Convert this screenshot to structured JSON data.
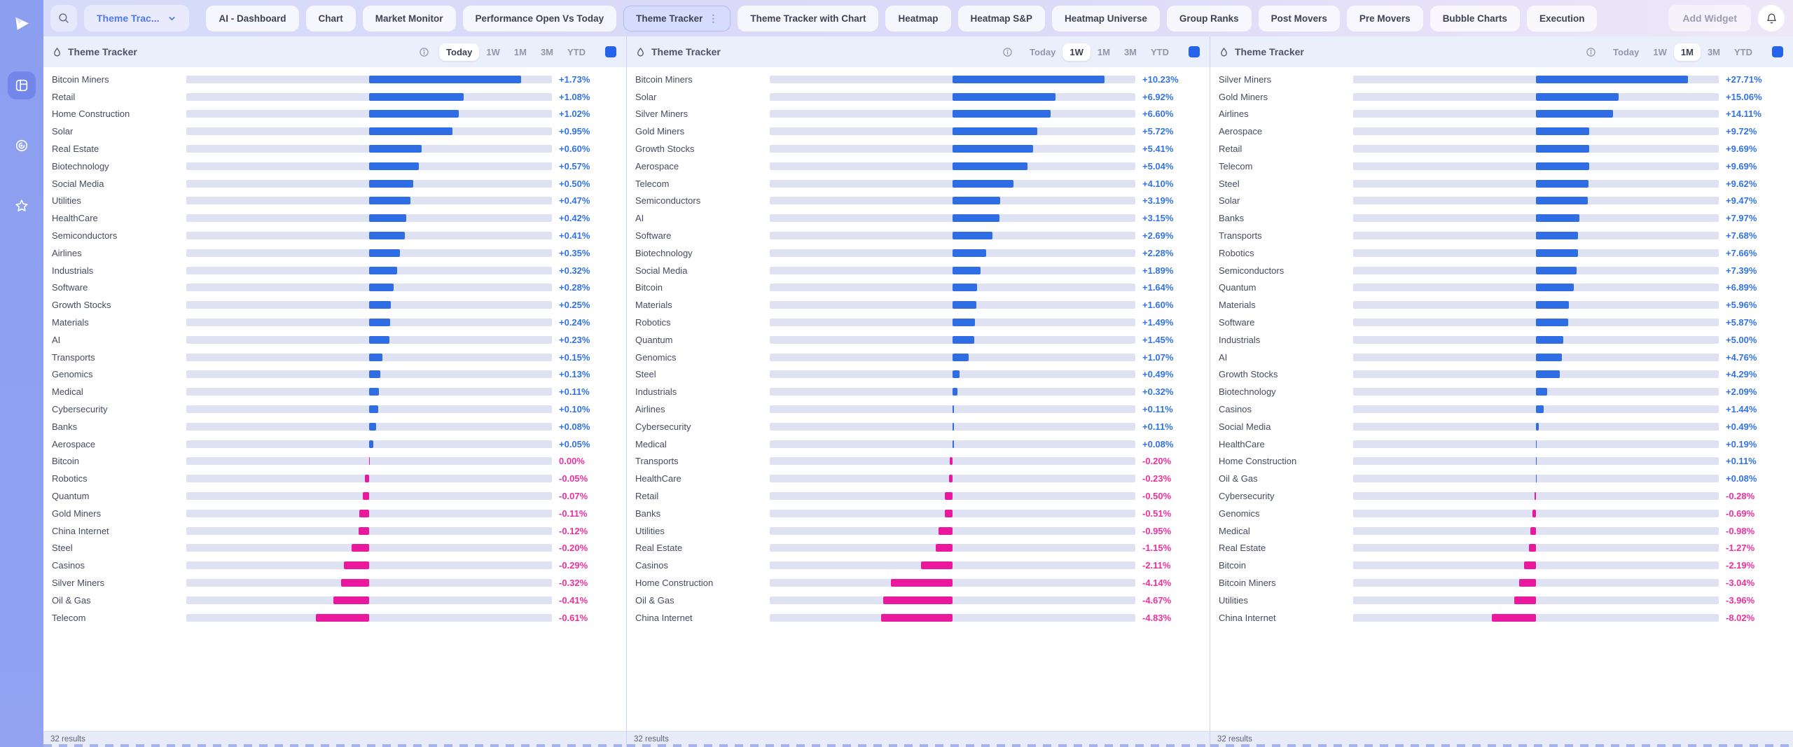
{
  "toolbar": {
    "dropdown_label": "Theme Trac...",
    "tabs": [
      "AI - Dashboard",
      "Chart",
      "Market Monitor",
      "Performance Open Vs Today",
      "Theme Tracker",
      "Theme Tracker with Chart",
      "Heatmap",
      "Heatmap S&P",
      "Heatmap Universe",
      "Group Ranks",
      "Post Movers",
      "Pre Movers",
      "Bubble Charts",
      "Execution"
    ],
    "active_tab": "Theme Tracker",
    "add_widget_label": "Add Widget"
  },
  "sidebar": {
    "icons": [
      "app-logo",
      "dashboard-grid",
      "target",
      "star"
    ]
  },
  "colors": {
    "positive_bar": "#2e6de4",
    "negative_bar": "#e9189c",
    "positive_text": "#3173e6",
    "negative_text": "#ef2f9f",
    "header_swatch": "#2563eb"
  },
  "panels": [
    {
      "title": "Theme Tracker",
      "widget_type": "bar",
      "show_info_icon": true,
      "timeframes": [
        "Today",
        "1W",
        "1M",
        "3M",
        "YTD"
      ],
      "active_timeframe": "Today",
      "results_label": "32 results",
      "rows": [
        [
          "Bitcoin Miners",
          "+1.73%"
        ],
        [
          "Retail",
          "+1.08%"
        ],
        [
          "Home Construction",
          "+1.02%"
        ],
        [
          "Solar",
          "+0.95%"
        ],
        [
          "Real Estate",
          "+0.60%"
        ],
        [
          "Biotechnology",
          "+0.57%"
        ],
        [
          "Social Media",
          "+0.50%"
        ],
        [
          "Utilities",
          "+0.47%"
        ],
        [
          "HealthCare",
          "+0.42%"
        ],
        [
          "Semiconductors",
          "+0.41%"
        ],
        [
          "Airlines",
          "+0.35%"
        ],
        [
          "Industrials",
          "+0.32%"
        ],
        [
          "Software",
          "+0.28%"
        ],
        [
          "Growth Stocks",
          "+0.25%"
        ],
        [
          "Materials",
          "+0.24%"
        ],
        [
          "AI",
          "+0.23%"
        ],
        [
          "Transports",
          "+0.15%"
        ],
        [
          "Genomics",
          "+0.13%"
        ],
        [
          "Medical",
          "+0.11%"
        ],
        [
          "Cybersecurity",
          "+0.10%"
        ],
        [
          "Banks",
          "+0.08%"
        ],
        [
          "Aerospace",
          "+0.05%"
        ],
        [
          "Bitcoin",
          "0.00%"
        ],
        [
          "Robotics",
          "-0.05%"
        ],
        [
          "Quantum",
          "-0.07%"
        ],
        [
          "Gold Miners",
          "-0.11%"
        ],
        [
          "China Internet",
          "-0.12%"
        ],
        [
          "Steel",
          "-0.20%"
        ],
        [
          "Casinos",
          "-0.29%"
        ],
        [
          "Silver Miners",
          "-0.32%"
        ],
        [
          "Oil & Gas",
          "-0.41%"
        ],
        [
          "Telecom",
          "-0.61%"
        ]
      ]
    },
    {
      "title": "Theme Tracker",
      "widget_type": "bar",
      "show_info_icon": false,
      "timeframes": [
        "Today",
        "1W",
        "1M",
        "3M",
        "YTD"
      ],
      "active_timeframe": "1W",
      "results_label": "32 results",
      "rows": [
        [
          "Bitcoin Miners",
          "+10.23%"
        ],
        [
          "Solar",
          "+6.92%"
        ],
        [
          "Silver Miners",
          "+6.60%"
        ],
        [
          "Gold Miners",
          "+5.72%"
        ],
        [
          "Growth Stocks",
          "+5.41%"
        ],
        [
          "Aerospace",
          "+5.04%"
        ],
        [
          "Telecom",
          "+4.10%"
        ],
        [
          "Semiconductors",
          "+3.19%"
        ],
        [
          "AI",
          "+3.15%"
        ],
        [
          "Software",
          "+2.69%"
        ],
        [
          "Biotechnology",
          "+2.28%"
        ],
        [
          "Social Media",
          "+1.89%"
        ],
        [
          "Bitcoin",
          "+1.64%"
        ],
        [
          "Materials",
          "+1.60%"
        ],
        [
          "Robotics",
          "+1.49%"
        ],
        [
          "Quantum",
          "+1.45%"
        ],
        [
          "Genomics",
          "+1.07%"
        ],
        [
          "Steel",
          "+0.49%"
        ],
        [
          "Industrials",
          "+0.32%"
        ],
        [
          "Airlines",
          "+0.11%"
        ],
        [
          "Cybersecurity",
          "+0.11%"
        ],
        [
          "Medical",
          "+0.08%"
        ],
        [
          "Transports",
          "-0.20%"
        ],
        [
          "HealthCare",
          "-0.23%"
        ],
        [
          "Retail",
          "-0.50%"
        ],
        [
          "Banks",
          "-0.51%"
        ],
        [
          "Utilities",
          "-0.95%"
        ],
        [
          "Real Estate",
          "-1.15%"
        ],
        [
          "Casinos",
          "-2.11%"
        ],
        [
          "Home Construction",
          "-4.14%"
        ],
        [
          "Oil & Gas",
          "-4.67%"
        ],
        [
          "China Internet",
          "-4.83%"
        ]
      ]
    },
    {
      "title": "Theme Tracker",
      "widget_type": "bar",
      "show_info_icon": false,
      "timeframes": [
        "Today",
        "1W",
        "1M",
        "3M",
        "YTD"
      ],
      "active_timeframe": "1M",
      "results_label": "32 results",
      "rows": [
        [
          "Silver Miners",
          "+27.71%"
        ],
        [
          "Gold Miners",
          "+15.06%"
        ],
        [
          "Airlines",
          "+14.11%"
        ],
        [
          "Aerospace",
          "+9.72%"
        ],
        [
          "Retail",
          "+9.69%"
        ],
        [
          "Telecom",
          "+9.69%"
        ],
        [
          "Steel",
          "+9.62%"
        ],
        [
          "Solar",
          "+9.47%"
        ],
        [
          "Banks",
          "+7.97%"
        ],
        [
          "Transports",
          "+7.68%"
        ],
        [
          "Robotics",
          "+7.66%"
        ],
        [
          "Semiconductors",
          "+7.39%"
        ],
        [
          "Quantum",
          "+6.89%"
        ],
        [
          "Materials",
          "+5.96%"
        ],
        [
          "Software",
          "+5.87%"
        ],
        [
          "Industrials",
          "+5.00%"
        ],
        [
          "AI",
          "+4.76%"
        ],
        [
          "Growth Stocks",
          "+4.29%"
        ],
        [
          "Biotechnology",
          "+2.09%"
        ],
        [
          "Casinos",
          "+1.44%"
        ],
        [
          "Social Media",
          "+0.49%"
        ],
        [
          "HealthCare",
          "+0.19%"
        ],
        [
          "Home Construction",
          "+0.11%"
        ],
        [
          "Oil & Gas",
          "+0.08%"
        ],
        [
          "Cybersecurity",
          "-0.28%"
        ],
        [
          "Genomics",
          "-0.69%"
        ],
        [
          "Medical",
          "-0.98%"
        ],
        [
          "Real Estate",
          "-1.27%"
        ],
        [
          "Bitcoin",
          "-2.19%"
        ],
        [
          "Bitcoin Miners",
          "-3.04%"
        ],
        [
          "Utilities",
          "-3.96%"
        ],
        [
          "China Internet",
          "-8.02%"
        ]
      ]
    }
  ]
}
